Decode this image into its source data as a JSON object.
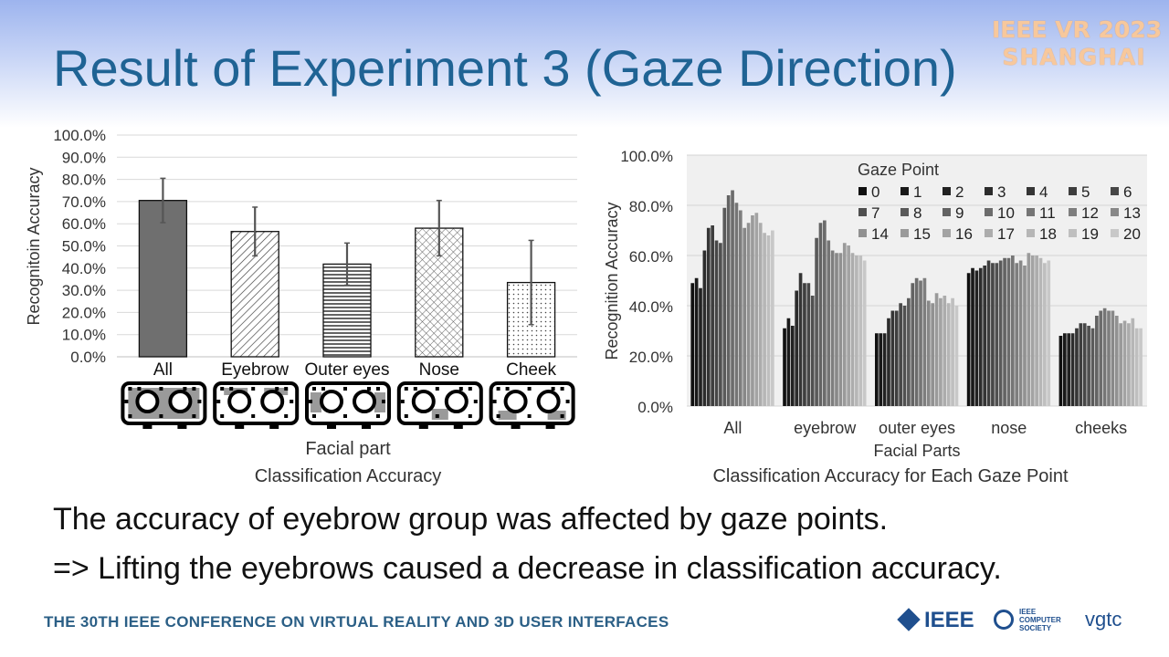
{
  "title": "Result of Experiment 3 (Gaze Direction)",
  "conference": {
    "line1": "IEEE VR 2023",
    "line2": "SHANGHAI"
  },
  "body": {
    "line1": "The accuracy of eyebrow group was affected by gaze points.",
    "line2": "=> Lifting the eyebrows caused a decrease in classification accuracy."
  },
  "footer": {
    "text": "THE 30TH IEEE CONFERENCE ON VIRTUAL REALITY  AND 3D USER INTERFACES",
    "logos": {
      "ieee": "IEEE",
      "computer_society": "IEEE COMPUTER SOCIETY",
      "vgtc": "vgtc"
    }
  },
  "colors": {
    "title": "#1f6394",
    "footer": "#2b5f86",
    "conference_logo": "#f7c89c"
  },
  "chart_data": [
    {
      "type": "bar",
      "title": "Classification Accuracy",
      "xlabel": "Facial part",
      "ylabel": "Recognitoin Accuracy",
      "categories": [
        "All",
        "Eyebrow",
        "Outer eyes",
        "Nose",
        "Cheek"
      ],
      "values": [
        70.5,
        56.5,
        41.8,
        58.0,
        33.5
      ],
      "error": [
        10.0,
        11.0,
        9.5,
        12.5,
        19.0
      ],
      "patterns": [
        "solid-gray",
        "diagonal-hatch",
        "horizontal-lines",
        "crosshatch",
        "dots"
      ],
      "ylim": [
        0,
        100
      ],
      "yticks": [
        "0.0%",
        "10.0%",
        "20.0%",
        "30.0%",
        "40.0%",
        "50.0%",
        "60.0%",
        "70.0%",
        "80.0%",
        "90.0%",
        "100.0%"
      ],
      "grid": true,
      "icons": [
        "face-icon-all",
        "face-icon-eyebrow",
        "face-icon-outer-eyes",
        "face-icon-nose",
        "face-icon-cheek"
      ]
    },
    {
      "type": "bar",
      "title": "Classification Accuracy for Each Gaze Point",
      "xlabel": "Facial Parts",
      "ylabel": "Recognition Accuracy",
      "categories": [
        "All",
        "eyebrow",
        "outer eyes",
        "nose",
        "cheeks"
      ],
      "legend_title": "Gaze Point",
      "legend_placement": "top-right",
      "ylim": [
        0,
        100
      ],
      "yticks": [
        "0.0%",
        "20.0%",
        "40.0%",
        "60.0%",
        "80.0%",
        "100.0%"
      ],
      "series": [
        {
          "name": "0",
          "values": [
            49,
            31,
            29,
            53,
            28
          ]
        },
        {
          "name": "1",
          "values": [
            51,
            35,
            29,
            55,
            29
          ]
        },
        {
          "name": "2",
          "values": [
            47,
            32,
            29,
            54,
            29
          ]
        },
        {
          "name": "3",
          "values": [
            62,
            46,
            35,
            55,
            29
          ]
        },
        {
          "name": "4",
          "values": [
            71,
            53,
            38,
            56,
            31
          ]
        },
        {
          "name": "5",
          "values": [
            72,
            49,
            38,
            58,
            33
          ]
        },
        {
          "name": "6",
          "values": [
            66,
            49,
            41,
            57,
            33
          ]
        },
        {
          "name": "7",
          "values": [
            65,
            44,
            40,
            57,
            32
          ]
        },
        {
          "name": "8",
          "values": [
            79,
            67,
            43,
            58,
            31
          ]
        },
        {
          "name": "9",
          "values": [
            84,
            73,
            49,
            59,
            36
          ]
        },
        {
          "name": "10",
          "values": [
            86,
            74,
            51,
            59,
            38
          ]
        },
        {
          "name": "11",
          "values": [
            81,
            66,
            50,
            60,
            39
          ]
        },
        {
          "name": "12",
          "values": [
            78,
            62,
            51,
            57,
            38
          ]
        },
        {
          "name": "13",
          "values": [
            71,
            61,
            42,
            58,
            38
          ]
        },
        {
          "name": "14",
          "values": [
            73,
            61,
            41,
            56,
            36
          ]
        },
        {
          "name": "15",
          "values": [
            76,
            65,
            45,
            61,
            33
          ]
        },
        {
          "name": "16",
          "values": [
            77,
            64,
            43,
            60,
            34
          ]
        },
        {
          "name": "17",
          "values": [
            73,
            61,
            44,
            60,
            33
          ]
        },
        {
          "name": "18",
          "values": [
            69,
            60,
            41,
            59,
            35
          ]
        },
        {
          "name": "19",
          "values": [
            68,
            60,
            43,
            57,
            31
          ]
        },
        {
          "name": "20",
          "values": [
            70,
            58,
            40,
            58,
            31
          ]
        }
      ]
    }
  ]
}
